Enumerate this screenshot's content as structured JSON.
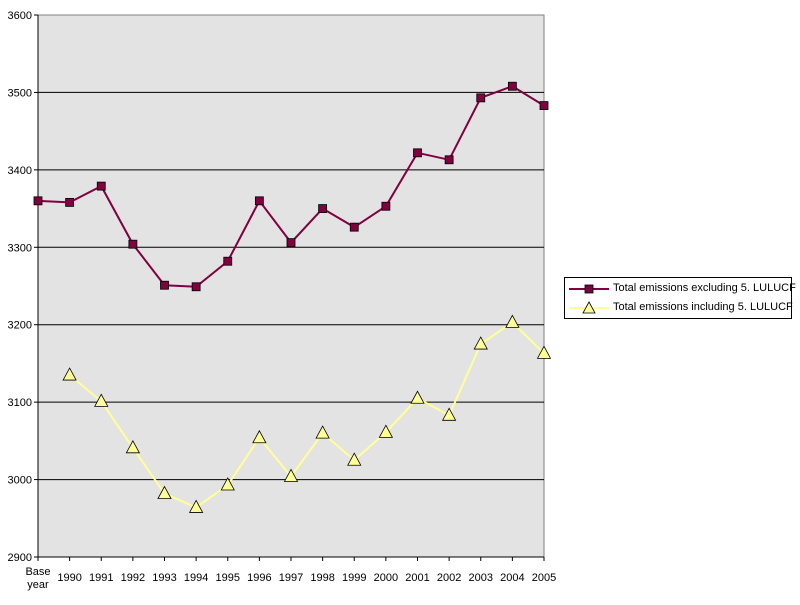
{
  "chart_data": {
    "type": "line",
    "categories": [
      "Base year",
      "1990",
      "1991",
      "1992",
      "1993",
      "1994",
      "1995",
      "1996",
      "1997",
      "1998",
      "1999",
      "2000",
      "2001",
      "2002",
      "2003",
      "2004",
      "2005"
    ],
    "ylim": [
      2900,
      3600
    ],
    "yticks": [
      2900,
      3000,
      3100,
      3200,
      3300,
      3400,
      3500,
      3600
    ],
    "grid": true,
    "legend_position": "right",
    "plot_background": "#e3e3e3",
    "series": [
      {
        "name": "Total emissions excluding 5. LULUCF",
        "color": "#800040",
        "marker_color": "#800040",
        "marker": "square",
        "values": [
          3360,
          3358,
          3379,
          3304,
          3251,
          3249,
          3282,
          3360,
          3306,
          3350,
          3326,
          3353,
          3422,
          3413,
          3493,
          3508,
          3483
        ]
      },
      {
        "name": "Total emissions including 5. LULUCF",
        "color": "#ffff99",
        "marker_color": "#ffff99",
        "marker": "triangle",
        "values": [
          null,
          3135,
          3101,
          3041,
          2982,
          2964,
          2993,
          3054,
          3004,
          3060,
          3025,
          3061,
          3105,
          3083,
          3175,
          3203,
          3163
        ]
      }
    ]
  }
}
